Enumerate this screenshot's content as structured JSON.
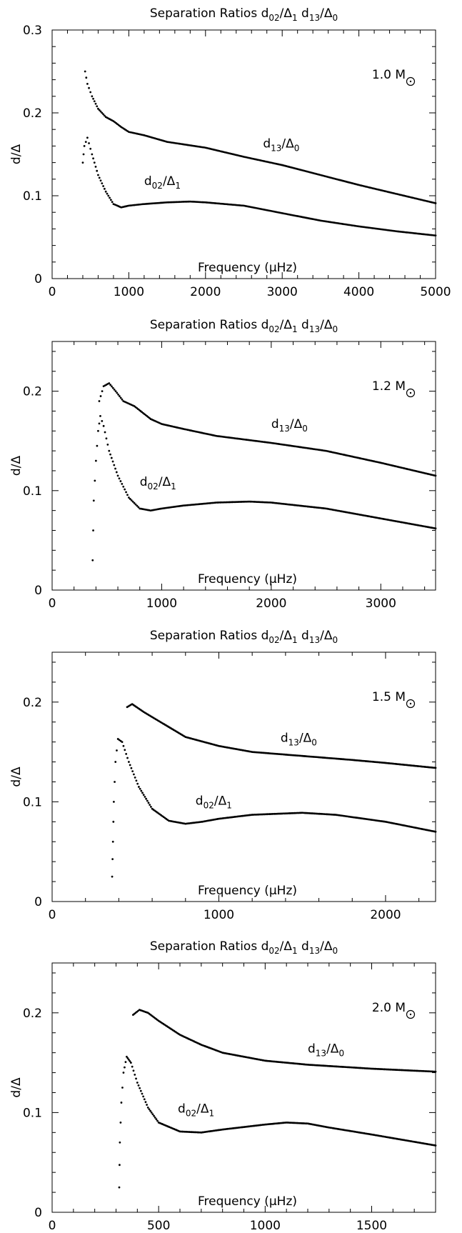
{
  "chart_data": [
    {
      "type": "scatter",
      "title": "Separation Ratios d02/Δ1 d13/Δ0",
      "title_parts": {
        "prefix": "Separation Ratios d",
        "sub1": "02",
        "mid1": "/Δ",
        "sub2": "1",
        "mid2": " d",
        "sub3": "13",
        "mid3": "/Δ",
        "sub4": "0"
      },
      "ylabel": "d/Δ",
      "xlabel": "Frequency (μHz)",
      "mass_label": "1.0 M",
      "xlim": [
        0,
        5000
      ],
      "ylim": [
        0,
        0.3
      ],
      "xticks": [
        0,
        1000,
        2000,
        3000,
        4000,
        5000
      ],
      "yticks": [
        0,
        0.1,
        0.2,
        0.3
      ],
      "ytick_labels": [
        "0",
        "0.1",
        "0.2",
        "0.3"
      ],
      "series": [
        {
          "label_main": "d",
          "label_sub1": "13",
          "label_mid": "/Δ",
          "label_sub2": "0",
          "label_at": [
            2750,
            0.158
          ],
          "points": [
            [
              430,
              0.25
            ],
            [
              460,
              0.235
            ],
            [
              520,
              0.22
            ],
            [
              600,
              0.205
            ],
            [
              700,
              0.195
            ],
            [
              800,
              0.19
            ],
            [
              900,
              0.183
            ],
            [
              1000,
              0.177
            ],
            [
              1200,
              0.173
            ],
            [
              1500,
              0.165
            ],
            [
              2000,
              0.158
            ],
            [
              2500,
              0.147
            ],
            [
              3000,
              0.137
            ],
            [
              3500,
              0.125
            ],
            [
              4000,
              0.113
            ],
            [
              4500,
              0.102
            ],
            [
              5000,
              0.091
            ]
          ]
        },
        {
          "label_main": "d",
          "label_sub1": "02",
          "label_mid": "/Δ",
          "label_sub2": "1",
          "label_at": [
            1200,
            0.113
          ],
          "points": [
            [
              400,
              0.14
            ],
            [
              420,
              0.16
            ],
            [
              460,
              0.17
            ],
            [
              520,
              0.15
            ],
            [
              600,
              0.125
            ],
            [
              700,
              0.105
            ],
            [
              800,
              0.09
            ],
            [
              900,
              0.086
            ],
            [
              1000,
              0.088
            ],
            [
              1200,
              0.09
            ],
            [
              1500,
              0.092
            ],
            [
              1800,
              0.093
            ],
            [
              2000,
              0.092
            ],
            [
              2500,
              0.088
            ],
            [
              3000,
              0.079
            ],
            [
              3500,
              0.07
            ],
            [
              4000,
              0.063
            ],
            [
              4500,
              0.057
            ],
            [
              5000,
              0.052
            ]
          ]
        }
      ]
    },
    {
      "type": "scatter",
      "title": "Separation Ratios d02/Δ1 d13/Δ0",
      "title_parts": {
        "prefix": "Separation Ratios d",
        "sub1": "02",
        "mid1": "/Δ",
        "sub2": "1",
        "mid2": " d",
        "sub3": "13",
        "mid3": "/Δ",
        "sub4": "0"
      },
      "ylabel": "d/Δ",
      "xlabel": "Frequency (μHz)",
      "mass_label": "1.2 M",
      "xlim": [
        0,
        3500
      ],
      "ylim": [
        0,
        0.25
      ],
      "xticks": [
        0,
        1000,
        2000,
        3000
      ],
      "yticks": [
        0,
        0.1,
        0.2
      ],
      "ytick_labels": [
        "0",
        "0.1",
        "0.2"
      ],
      "series": [
        {
          "label_main": "d",
          "label_sub1": "13",
          "label_mid": "/Δ",
          "label_sub2": "0",
          "label_at": [
            2000,
            0.163
          ],
          "points": [
            [
              430,
              0.19
            ],
            [
              470,
              0.205
            ],
            [
              520,
              0.208
            ],
            [
              580,
              0.2
            ],
            [
              650,
              0.19
            ],
            [
              750,
              0.185
            ],
            [
              900,
              0.172
            ],
            [
              1000,
              0.167
            ],
            [
              1200,
              0.162
            ],
            [
              1500,
              0.155
            ],
            [
              2000,
              0.148
            ],
            [
              2500,
              0.14
            ],
            [
              3000,
              0.128
            ],
            [
              3500,
              0.115
            ]
          ]
        },
        {
          "label_main": "d",
          "label_sub1": "02",
          "label_mid": "/Δ",
          "label_sub2": "1",
          "label_at": [
            800,
            0.105
          ],
          "points": [
            [
              370,
              0.03
            ],
            [
              380,
              0.09
            ],
            [
              400,
              0.13
            ],
            [
              420,
              0.16
            ],
            [
              440,
              0.175
            ],
            [
              470,
              0.165
            ],
            [
              520,
              0.14
            ],
            [
              600,
              0.115
            ],
            [
              700,
              0.093
            ],
            [
              800,
              0.082
            ],
            [
              900,
              0.08
            ],
            [
              1000,
              0.082
            ],
            [
              1200,
              0.085
            ],
            [
              1500,
              0.088
            ],
            [
              1800,
              0.089
            ],
            [
              2000,
              0.088
            ],
            [
              2500,
              0.082
            ],
            [
              3000,
              0.072
            ],
            [
              3500,
              0.062
            ]
          ]
        }
      ]
    },
    {
      "type": "scatter",
      "title": "Separation Ratios d02/Δ1 d13/Δ0",
      "title_parts": {
        "prefix": "Separation Ratios d",
        "sub1": "02",
        "mid1": "/Δ",
        "sub2": "1",
        "mid2": " d",
        "sub3": "13",
        "mid3": "/Δ",
        "sub4": "0"
      },
      "ylabel": "d/Δ",
      "xlabel": "Frequency (μHz)",
      "mass_label": "1.5 M",
      "xlim": [
        0,
        2300
      ],
      "ylim": [
        0,
        0.25
      ],
      "xticks": [
        0,
        1000,
        2000
      ],
      "yticks": [
        0,
        0.1,
        0.2
      ],
      "ytick_labels": [
        "0",
        "0.1",
        "0.2"
      ],
      "series": [
        {
          "label_main": "d",
          "label_sub1": "13",
          "label_mid": "/Δ",
          "label_sub2": "0",
          "label_at": [
            1370,
            0.16
          ],
          "points": [
            [
              450,
              0.195
            ],
            [
              480,
              0.198
            ],
            [
              550,
              0.19
            ],
            [
              650,
              0.18
            ],
            [
              800,
              0.165
            ],
            [
              1000,
              0.156
            ],
            [
              1200,
              0.15
            ],
            [
              1500,
              0.146
            ],
            [
              1800,
              0.142
            ],
            [
              2000,
              0.139
            ],
            [
              2300,
              0.134
            ]
          ]
        },
        {
          "label_main": "d",
          "label_sub1": "02",
          "label_mid": "/Δ",
          "label_sub2": "1",
          "label_at": [
            860,
            0.097
          ],
          "points": [
            [
              360,
              0.025
            ],
            [
              365,
              0.06
            ],
            [
              370,
              0.1
            ],
            [
              380,
              0.14
            ],
            [
              395,
              0.163
            ],
            [
              420,
              0.16
            ],
            [
              460,
              0.14
            ],
            [
              520,
              0.115
            ],
            [
              600,
              0.093
            ],
            [
              700,
              0.081
            ],
            [
              800,
              0.078
            ],
            [
              900,
              0.08
            ],
            [
              1000,
              0.083
            ],
            [
              1200,
              0.087
            ],
            [
              1500,
              0.089
            ],
            [
              1700,
              0.087
            ],
            [
              2000,
              0.08
            ],
            [
              2300,
              0.07
            ]
          ]
        }
      ]
    },
    {
      "type": "scatter",
      "title": "Separation Ratios d02/Δ1 d13/Δ0",
      "title_parts": {
        "prefix": "Separation Ratios d",
        "sub1": "02",
        "mid1": "/Δ",
        "sub2": "1",
        "mid2": " d",
        "sub3": "13",
        "mid3": "/Δ",
        "sub4": "0"
      },
      "ylabel": "d/Δ",
      "xlabel": "Frequency (μHz)",
      "mass_label": "2.0 M",
      "xlim": [
        0,
        1800
      ],
      "ylim": [
        0,
        0.25
      ],
      "xticks": [
        0,
        500,
        1000,
        1500
      ],
      "yticks": [
        0,
        0.1,
        0.2
      ],
      "ytick_labels": [
        "0",
        "0.1",
        "0.2"
      ],
      "series": [
        {
          "label_main": "d",
          "label_sub1": "13",
          "label_mid": "/Δ",
          "label_sub2": "0",
          "label_at": [
            1200,
            0.16
          ],
          "points": [
            [
              380,
              0.198
            ],
            [
              410,
              0.203
            ],
            [
              450,
              0.2
            ],
            [
              500,
              0.192
            ],
            [
              600,
              0.178
            ],
            [
              700,
              0.168
            ],
            [
              800,
              0.16
            ],
            [
              1000,
              0.152
            ],
            [
              1200,
              0.148
            ],
            [
              1500,
              0.144
            ],
            [
              1800,
              0.141
            ]
          ]
        },
        {
          "label_main": "d",
          "label_sub1": "02",
          "label_mid": "/Δ",
          "label_sub2": "1",
          "label_at": [
            590,
            0.1
          ],
          "points": [
            [
              315,
              0.025
            ],
            [
              318,
              0.07
            ],
            [
              325,
              0.11
            ],
            [
              335,
              0.14
            ],
            [
              350,
              0.156
            ],
            [
              370,
              0.15
            ],
            [
              400,
              0.13
            ],
            [
              450,
              0.105
            ],
            [
              500,
              0.09
            ],
            [
              600,
              0.081
            ],
            [
              700,
              0.08
            ],
            [
              800,
              0.083
            ],
            [
              1000,
              0.088
            ],
            [
              1100,
              0.09
            ],
            [
              1200,
              0.089
            ],
            [
              1300,
              0.085
            ],
            [
              1500,
              0.078
            ],
            [
              1800,
              0.067
            ]
          ]
        }
      ]
    }
  ]
}
